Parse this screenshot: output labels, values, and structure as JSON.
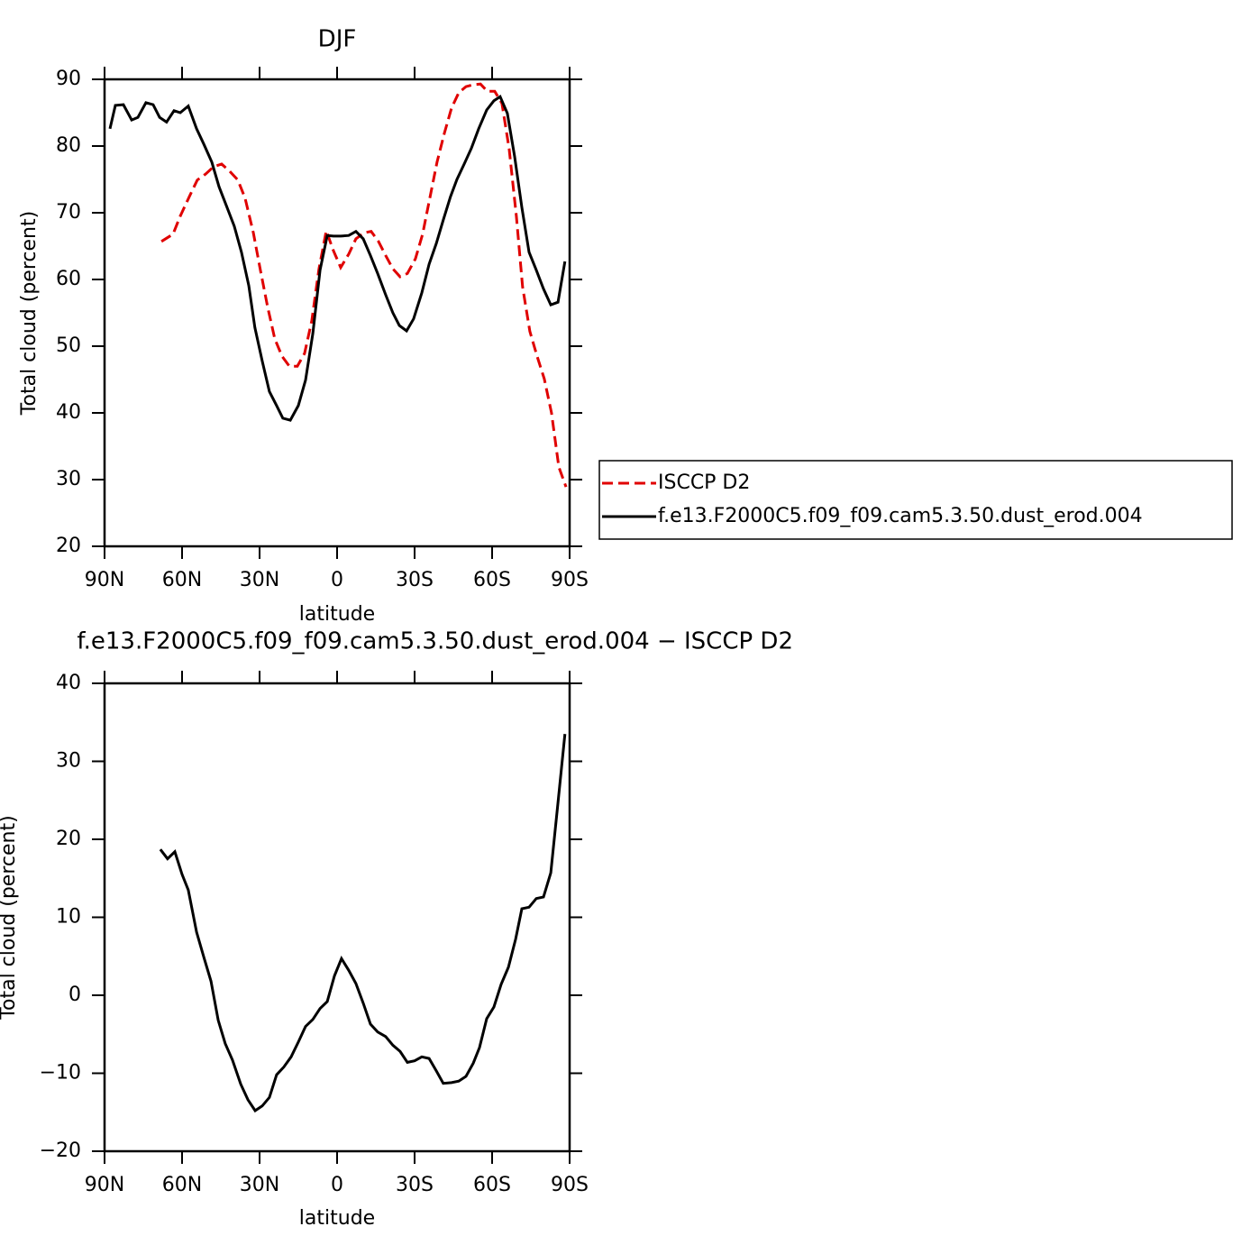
{
  "chart_data": [
    {
      "type": "line",
      "title": "DJF",
      "xlabel": "latitude",
      "ylabel": "Total cloud (percent)",
      "xlim": [
        90,
        -90
      ],
      "xticks": [
        {
          "value": 90,
          "label": "90N"
        },
        {
          "value": 60,
          "label": "60N"
        },
        {
          "value": 30,
          "label": "30N"
        },
        0,
        {
          "value": -30,
          "label": "30S"
        },
        {
          "value": -60,
          "label": "60S"
        },
        {
          "value": -90,
          "label": "90S"
        }
      ],
      "ylim": [
        20,
        90
      ],
      "yticks": [
        20,
        30,
        40,
        50,
        60,
        70,
        80,
        90
      ],
      "legend": "right",
      "series": [
        {
          "name": "ISCCP D2",
          "color": "#e00000",
          "dashed": true,
          "x": [
            68,
            63.5,
            60.7,
            57.2,
            54.1,
            50.9,
            47.8,
            44.7,
            41.5,
            38.4,
            35.6,
            32.4,
            29.7,
            26.9,
            24.1,
            21.3,
            18.5,
            15.4,
            12.6,
            9.8,
            7,
            4.2,
            1.4,
            -1.4,
            -4.5,
            -7.3,
            -10.5,
            -13.2,
            -16,
            -18.8,
            -21.6,
            -24.4,
            -27.2,
            -30.3,
            -33.1,
            -35.9,
            -38.7,
            -41.5,
            -44.3,
            -47.1,
            -49.9,
            -52.7,
            -55.5,
            -58.2,
            -61,
            -63.8,
            -66.6,
            -69.4,
            -71.8,
            -74.6,
            -77.4,
            -80.2,
            -83,
            -85.8,
            -88.6
          ],
          "values": [
            65.7,
            66.8,
            69.5,
            72.4,
            74.9,
            75.8,
            76.9,
            77.3,
            76.2,
            74.9,
            72.2,
            67,
            61.4,
            55.9,
            51.1,
            48.5,
            47,
            47,
            48.9,
            53.8,
            61.6,
            67.3,
            64.3,
            61.8,
            63.8,
            66.1,
            67,
            67.2,
            65.7,
            63.6,
            61.6,
            60.4,
            60.9,
            63.1,
            66.8,
            72.2,
            77.6,
            81.9,
            85.7,
            88,
            88.9,
            89.2,
            89.3,
            88.2,
            88.2,
            86.4,
            79.6,
            69.5,
            58.9,
            52.2,
            48.5,
            45.1,
            40,
            31.9,
            28.9
          ]
        },
        {
          "name": "f.e13.F2000C5.f09_f09.cam5.3.50.dust_erod.004",
          "color": "#000000",
          "dashed": false,
          "x": [
            87.9,
            85.8,
            82.7,
            79.5,
            77.1,
            74,
            71.2,
            68.7,
            66,
            63.1,
            60.7,
            57.6,
            54.4,
            51.6,
            48.5,
            45.7,
            42.6,
            39.8,
            37,
            34.2,
            31.8,
            29,
            26.2,
            23.4,
            21,
            18.1,
            15,
            12.2,
            9.4,
            6.6,
            3.8,
            1.4,
            -1.4,
            -4.5,
            -7.3,
            -10.1,
            -12.9,
            -15.7,
            -18.8,
            -21.6,
            -24.1,
            -26.9,
            -29.6,
            -32.8,
            -35.6,
            -38.4,
            -41.1,
            -43.9,
            -46.4,
            -49.2,
            -52,
            -54.8,
            -57.9,
            -60.7,
            -63.1,
            -65.9,
            -68.7,
            -71.5,
            -74.3,
            -77.1,
            -79.9,
            -82.7,
            -85.5,
            -88.2
          ],
          "values": [
            82.6,
            86.1,
            86.2,
            83.9,
            84.3,
            86.5,
            86.2,
            84.3,
            83.6,
            85.3,
            85,
            86,
            82.6,
            80.3,
            77.6,
            73.9,
            70.8,
            68,
            64.1,
            59.1,
            52.8,
            47.8,
            43.2,
            41.1,
            39.2,
            38.9,
            41.1,
            44.9,
            51.9,
            61.4,
            66.6,
            66.5,
            66.5,
            66.6,
            67.2,
            66.1,
            63.6,
            60.9,
            57.7,
            55,
            53.1,
            52.3,
            54.1,
            58,
            62.3,
            65.4,
            68.9,
            72.4,
            75,
            77.3,
            79.7,
            82.6,
            85.4,
            86.8,
            87.4,
            84.9,
            78.5,
            70.8,
            64.1,
            61.4,
            58.6,
            56.2,
            56.6,
            62.7
          ]
        }
      ]
    },
    {
      "type": "line",
      "title": "f.e13.F2000C5.f09_f09.cam5.3.50.dust_erod.004 − ISCCP D2",
      "xlabel": "latitude",
      "ylabel": "Total cloud (percent)",
      "xlim": [
        90,
        -90
      ],
      "xticks": [
        {
          "value": 90,
          "label": "90N"
        },
        {
          "value": 60,
          "label": "60N"
        },
        {
          "value": 30,
          "label": "30N"
        },
        0,
        {
          "value": -30,
          "label": "30S"
        },
        {
          "value": -60,
          "label": "60S"
        },
        {
          "value": -90,
          "label": "90S"
        }
      ],
      "ylim": [
        -20,
        40
      ],
      "yticks": [
        {
          "value": -20,
          "label": "−20"
        },
        {
          "value": -10,
          "label": "−10"
        },
        0,
        10,
        20,
        30,
        40
      ],
      "series": [
        {
          "color": "#000000",
          "dashed": false,
          "x": [
            68.4,
            65.6,
            62.8,
            60,
            57.6,
            54.4,
            51.6,
            48.8,
            46,
            43.3,
            40.5,
            37.3,
            34.5,
            31.7,
            29,
            26.2,
            23.4,
            20.6,
            17.8,
            15,
            12.2,
            9.4,
            6.6,
            3.8,
            1,
            -1.7,
            -4.5,
            -7.3,
            -10.1,
            -12.9,
            -15.7,
            -18.8,
            -21.6,
            -24.4,
            -27.2,
            -30,
            -32.8,
            -35.6,
            -38.4,
            -41.1,
            -44.3,
            -47.1,
            -49.9,
            -52.7,
            -55.1,
            -57.9,
            -60.7,
            -63.5,
            -66.3,
            -69.1,
            -71.5,
            -74.3,
            -77.1,
            -79.9,
            -82.7,
            -85.5,
            -88.2
          ],
          "values": [
            18.7,
            17.5,
            18.4,
            15.5,
            13.5,
            8.1,
            4.9,
            1.8,
            -3.2,
            -6.2,
            -8.3,
            -11.4,
            -13.4,
            -14.8,
            -14.2,
            -13.1,
            -10.2,
            -9.2,
            -7.9,
            -6,
            -4,
            -3.1,
            -1.7,
            -0.8,
            2.5,
            4.7,
            3.2,
            1.5,
            -1,
            -3.7,
            -4.7,
            -5.3,
            -6.4,
            -7.2,
            -8.6,
            -8.4,
            -7.9,
            -8.1,
            -9.7,
            -11.3,
            -11.2,
            -11,
            -10.4,
            -8.7,
            -6.7,
            -3,
            -1.5,
            1.4,
            3.6,
            7.2,
            11.1,
            11.3,
            12.4,
            12.6,
            15.7,
            24.7,
            33.5
          ]
        }
      ]
    }
  ]
}
